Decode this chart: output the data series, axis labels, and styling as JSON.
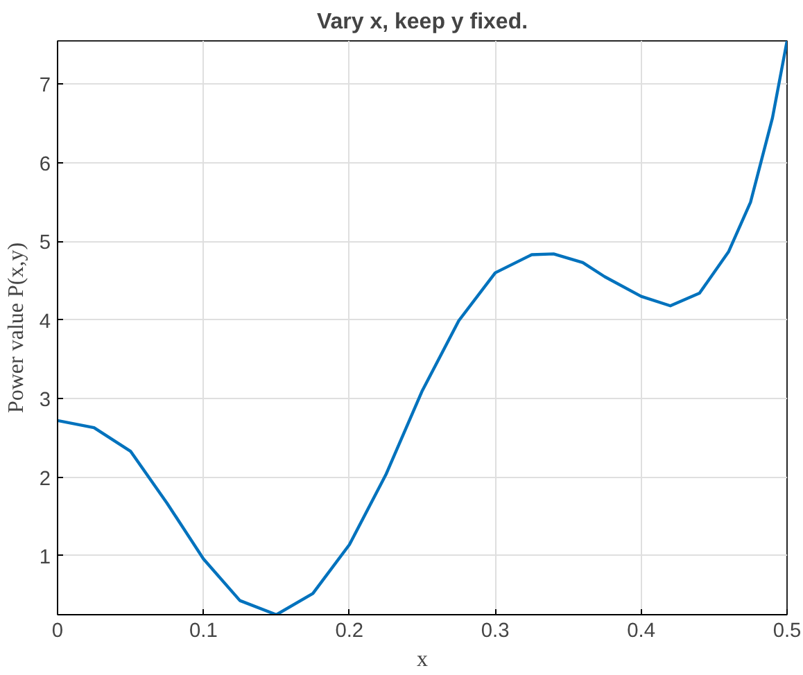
{
  "chart_data": {
    "type": "line",
    "title": "Vary x, keep y fixed.",
    "xlabel": "x",
    "ylabel": "Power value P(x,y)",
    "x": [
      0,
      0.025,
      0.05,
      0.075,
      0.1,
      0.125,
      0.15,
      0.175,
      0.2,
      0.225,
      0.25,
      0.275,
      0.3,
      0.325,
      0.34,
      0.36,
      0.375,
      0.4,
      0.42,
      0.44,
      0.46,
      0.475,
      0.49,
      0.5
    ],
    "series": [
      {
        "color": "#0072bd",
        "values": [
          2.72,
          2.63,
          2.33,
          1.67,
          0.96,
          0.43,
          0.25,
          0.52,
          1.14,
          2.03,
          3.1,
          3.99,
          4.6,
          4.83,
          4.84,
          4.73,
          4.55,
          4.3,
          4.18,
          4.34,
          4.87,
          5.5,
          6.57,
          7.55
        ]
      }
    ],
    "xlim": [
      0,
      0.5
    ],
    "ylim": [
      0.25,
      7.55
    ],
    "xticks": [
      0,
      0.1,
      0.2,
      0.3,
      0.4,
      0.5
    ],
    "yticks": [
      1,
      2,
      3,
      4,
      5,
      6,
      7
    ],
    "grid": true,
    "line_style": "solid",
    "marker": "none"
  }
}
